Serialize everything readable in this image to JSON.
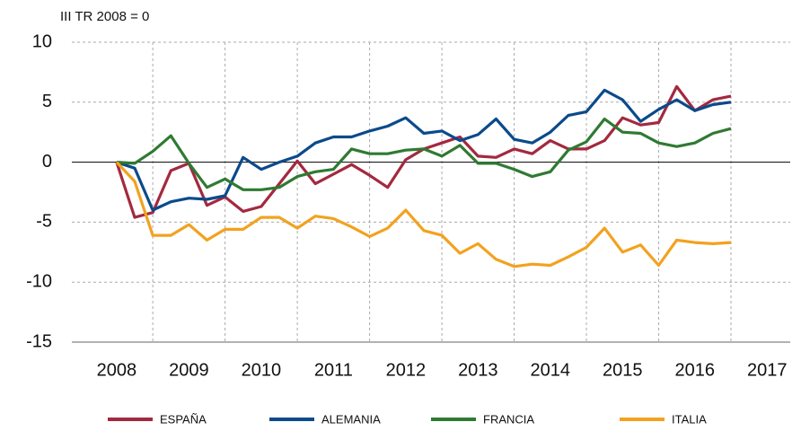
{
  "chart_data": {
    "type": "line",
    "subtitle": "III TR 2008 = 0",
    "x": [
      2008.5,
      2008.75,
      2009.0,
      2009.25,
      2009.5,
      2009.75,
      2010.0,
      2010.25,
      2010.5,
      2010.75,
      2011.0,
      2011.25,
      2011.5,
      2011.75,
      2012.0,
      2012.25,
      2012.5,
      2012.75,
      2013.0,
      2013.25,
      2013.5,
      2013.75,
      2014.0,
      2014.25,
      2014.5,
      2014.75,
      2015.0,
      2015.25,
      2015.5,
      2015.75,
      2016.0,
      2016.25,
      2016.5,
      2016.75,
      2017.0
    ],
    "series": [
      {
        "name": "ESPAÑA",
        "color": "#a3293f",
        "values": [
          0,
          -4.6,
          -4.2,
          -0.7,
          -0.1,
          -3.6,
          -2.9,
          -4.1,
          -3.7,
          -1.8,
          0.1,
          -1.8,
          -1.0,
          -0.2,
          -1.1,
          -2.1,
          0.2,
          1.1,
          1.6,
          2.1,
          0.5,
          0.4,
          1.1,
          0.7,
          1.8,
          1.1,
          1.1,
          1.8,
          3.7,
          3.1,
          3.3,
          6.3,
          4.3,
          5.2,
          5.5
        ]
      },
      {
        "name": "ALEMANIA",
        "color": "#0b4a8b",
        "values": [
          0,
          -0.5,
          -4.0,
          -3.3,
          -3.0,
          -3.1,
          -2.8,
          0.4,
          -0.6,
          0.0,
          0.5,
          1.6,
          2.1,
          2.1,
          2.6,
          3.0,
          3.7,
          2.4,
          2.6,
          1.8,
          2.3,
          3.6,
          1.9,
          1.6,
          2.5,
          3.9,
          4.2,
          6.0,
          5.2,
          3.4,
          4.4,
          5.2,
          4.3,
          4.8,
          5.0
        ]
      },
      {
        "name": "FRANCIA",
        "color": "#2f7a32",
        "values": [
          0,
          -0.1,
          0.9,
          2.2,
          -0.1,
          -2.1,
          -1.4,
          -2.3,
          -2.3,
          -2.1,
          -1.2,
          -0.8,
          -0.6,
          1.1,
          0.7,
          0.7,
          1.0,
          1.1,
          0.5,
          1.4,
          -0.1,
          -0.1,
          -0.6,
          -1.2,
          -0.8,
          1.0,
          1.7,
          3.6,
          2.5,
          2.4,
          1.6,
          1.3,
          1.6,
          2.4,
          2.8
        ]
      },
      {
        "name": "ITALIA",
        "color": "#f2a21f",
        "values": [
          0,
          -1.6,
          -6.1,
          -6.1,
          -5.2,
          -6.5,
          -5.6,
          -5.6,
          -4.6,
          -4.6,
          -5.5,
          -4.5,
          -4.7,
          -5.4,
          -6.2,
          -5.5,
          -4.0,
          -5.7,
          -6.1,
          -7.6,
          -6.8,
          -8.1,
          -8.7,
          -8.5,
          -8.6,
          -7.9,
          -7.1,
          -5.5,
          -7.5,
          -6.9,
          -8.6,
          -6.5,
          -6.7,
          -6.8,
          -6.7
        ]
      }
    ],
    "xlim": [
      2007.88,
      2017.82
    ],
    "xticks": [
      {
        "value": 2008.5,
        "label": "2008"
      },
      {
        "value": 2009.5,
        "label": "2009"
      },
      {
        "value": 2010.5,
        "label": "2010"
      },
      {
        "value": 2011.5,
        "label": "2011"
      },
      {
        "value": 2012.5,
        "label": "2012"
      },
      {
        "value": 2013.5,
        "label": "2013"
      },
      {
        "value": 2014.5,
        "label": "2014"
      },
      {
        "value": 2015.5,
        "label": "2015"
      },
      {
        "value": 2016.5,
        "label": "2016"
      },
      {
        "value": 2017.5,
        "label": "2017"
      }
    ],
    "ylim": [
      -15,
      10
    ],
    "yticks": [
      -15,
      -10,
      -5,
      0,
      5,
      10
    ],
    "grid": true,
    "legend": "bottom"
  }
}
